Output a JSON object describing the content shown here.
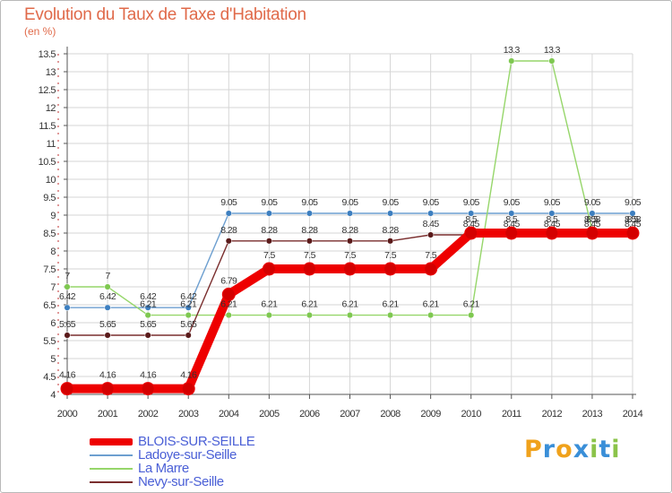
{
  "title": "Evolution du Taux de Taxe d'Habitation",
  "unit": "(en %)",
  "logo": {
    "letters": [
      "P",
      "r",
      "o",
      "x",
      "i",
      "t",
      "i"
    ],
    "colors": [
      "#f0a21c",
      "#3a8fd8",
      "#f0a21c",
      "#3a8fd8",
      "#8bc34a",
      "#3a8fd8",
      "#8bc34a"
    ]
  },
  "chart_data": {
    "type": "line",
    "title": "Evolution du Taux de Taxe d'Habitation",
    "ylabel": "(en %)",
    "xlabel": "",
    "x": [
      "2000",
      "2001",
      "2002",
      "2003",
      "2004",
      "2005",
      "2006",
      "2007",
      "2008",
      "2009",
      "2010",
      "2011",
      "2012",
      "2013",
      "2014"
    ],
    "ylim": [
      4,
      13.5
    ],
    "yticks": [
      "4",
      "4.5",
      "5",
      "5.5",
      "6",
      "6.5",
      "7",
      "7.5",
      "8",
      "8.5",
      "9",
      "9.5",
      "10",
      "10.5",
      "11",
      "11.5",
      "12",
      "12.5",
      "13",
      "13.5"
    ],
    "grid": true,
    "series": [
      {
        "name": "BLOIS-SUR-SEILLE",
        "color": "#ee0000",
        "marker": "#d40000",
        "values": [
          4.16,
          4.16,
          4.16,
          4.16,
          6.79,
          7.5,
          7.5,
          7.5,
          7.5,
          7.5,
          8.5,
          8.5,
          8.5,
          8.5,
          8.5
        ],
        "labels": [
          "4.16",
          "4.16",
          "4.16",
          "4.16",
          "6.79",
          "7.5",
          "7.5",
          "7.5",
          "7.5",
          "7.5",
          "8.5",
          "8.5",
          "8.5",
          "8.5",
          "8.5"
        ]
      },
      {
        "name": "Ladoye-sur-Seille",
        "color": "#6d9fd0",
        "marker": "#3d7fc0",
        "values": [
          6.42,
          6.42,
          6.42,
          6.42,
          9.05,
          9.05,
          9.05,
          9.05,
          9.05,
          9.05,
          9.05,
          9.05,
          9.05,
          9.05,
          9.05
        ],
        "labels": [
          "6.42",
          "6.42",
          "6.42",
          "6.42",
          "9.05",
          "9.05",
          "9.05",
          "9.05",
          "9.05",
          "9.05",
          "9.05",
          "9.05",
          "9.05",
          "9.05",
          "9.05"
        ]
      },
      {
        "name": "La Marre",
        "color": "#96d66a",
        "marker": "#7ec850",
        "values": [
          7,
          7,
          6.21,
          6.21,
          6.21,
          6.21,
          6.21,
          6.21,
          6.21,
          6.21,
          6.21,
          13.3,
          13.3,
          8.58,
          8.58
        ],
        "labels": [
          "7",
          "7",
          "6.21",
          "6.21",
          "6.21",
          "6.21",
          "6.21",
          "6.21",
          "6.21",
          "6.21",
          "6.21",
          "13.3",
          "13.3",
          "8.58",
          "8.58"
        ]
      },
      {
        "name": "Nevy-sur-Seille",
        "color": "#7a2e2e",
        "marker": "#5a1a1a",
        "values": [
          5.65,
          5.65,
          5.65,
          5.65,
          8.28,
          8.28,
          8.28,
          8.28,
          8.28,
          8.45,
          8.45,
          8.45,
          8.45,
          8.45,
          8.45
        ],
        "labels": [
          "5.65",
          "5.65",
          "5.65",
          "5.65",
          "8.28",
          "8.28",
          "8.28",
          "8.28",
          "8.28",
          "8.45",
          "8.45",
          "8.45",
          "8.45",
          "8.45",
          "8.45"
        ]
      }
    ]
  }
}
